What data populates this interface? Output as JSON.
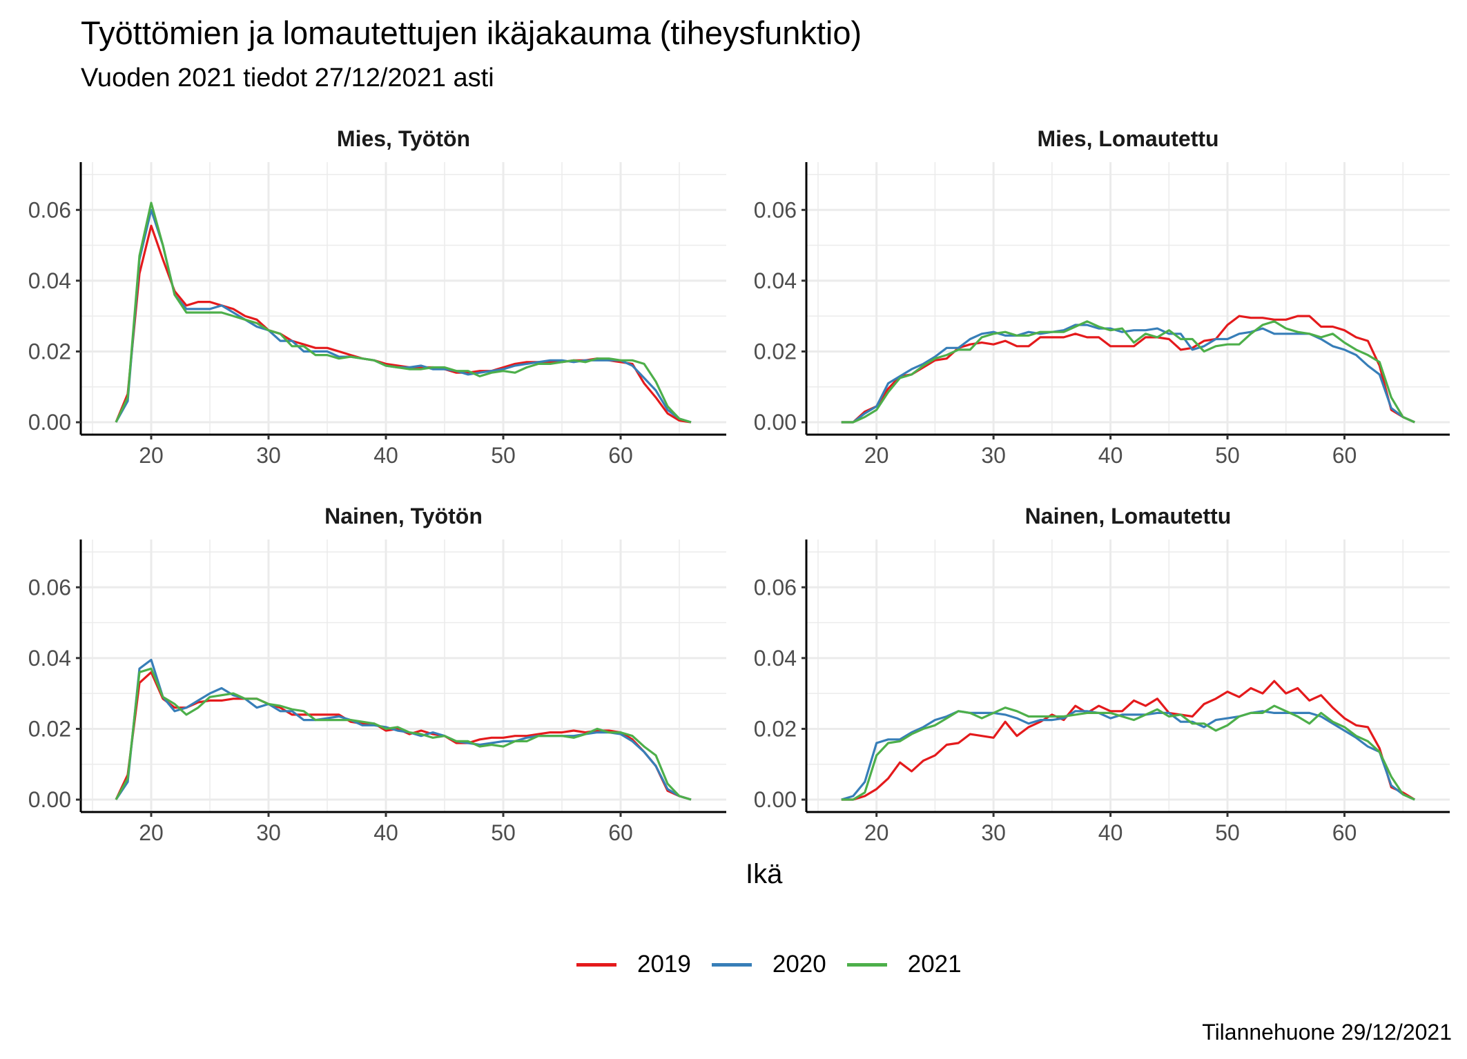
{
  "title": "Työttömien ja lomautettujen ikäjakauma (tiheysfunktio)",
  "subtitle": "Vuoden 2021 tiedot 27/12/2021 asti",
  "caption": "Tilannehuone 29/12/2021",
  "chart_data": {
    "type": "line",
    "title": "Työttömien ja lomautettujen ikäjakauma (tiheysfunktio)",
    "subtitle": "Vuoden 2021 tiedot 27/12/2021 asti",
    "xlabel": "Ikä",
    "ylabel": "",
    "xlim": [
      14,
      69
    ],
    "ylim": [
      -0.0035,
      0.0735
    ],
    "xticks": [
      20,
      30,
      40,
      50,
      60
    ],
    "yticks": [
      0.0,
      0.02,
      0.04,
      0.06
    ],
    "ytick_labels": [
      "0.00",
      "0.02",
      "0.04",
      "0.06"
    ],
    "grid": true,
    "legend": {
      "position": "bottom",
      "entries": [
        {
          "label": "2019",
          "color": "#E41A1C"
        },
        {
          "label": "2020",
          "color": "#377EB8"
        },
        {
          "label": "2021",
          "color": "#4DAF4A"
        }
      ]
    },
    "x": [
      17,
      18,
      19,
      20,
      21,
      22,
      23,
      24,
      25,
      26,
      27,
      28,
      29,
      30,
      31,
      32,
      33,
      34,
      35,
      36,
      37,
      38,
      39,
      40,
      41,
      42,
      43,
      44,
      45,
      46,
      47,
      48,
      49,
      50,
      51,
      52,
      53,
      54,
      55,
      56,
      57,
      58,
      59,
      60,
      61,
      62,
      63,
      64,
      65,
      66
    ],
    "panels": [
      {
        "strip": "Mies, Työtön",
        "series": [
          {
            "name": "2019",
            "values": [
              0,
              0.008,
              0.042,
              0.0555,
              0.046,
              0.037,
              0.033,
              0.034,
              0.034,
              0.033,
              0.032,
              0.03,
              0.029,
              0.026,
              0.025,
              0.023,
              0.022,
              0.021,
              0.021,
              0.02,
              0.019,
              0.018,
              0.0175,
              0.0165,
              0.016,
              0.0155,
              0.0155,
              0.0155,
              0.015,
              0.014,
              0.014,
              0.0145,
              0.0145,
              0.0155,
              0.0165,
              0.017,
              0.017,
              0.017,
              0.017,
              0.0175,
              0.0175,
              0.018,
              0.0175,
              0.017,
              0.0165,
              0.011,
              0.007,
              0.0025,
              0.0005,
              0
            ]
          },
          {
            "name": "2020",
            "values": [
              0,
              0.006,
              0.046,
              0.06,
              0.05,
              0.036,
              0.032,
              0.032,
              0.032,
              0.033,
              0.031,
              0.029,
              0.027,
              0.026,
              0.023,
              0.023,
              0.02,
              0.02,
              0.02,
              0.0185,
              0.0185,
              0.018,
              0.0175,
              0.016,
              0.0155,
              0.0155,
              0.016,
              0.015,
              0.015,
              0.0145,
              0.0135,
              0.014,
              0.0145,
              0.015,
              0.016,
              0.0165,
              0.017,
              0.0175,
              0.0175,
              0.017,
              0.0175,
              0.0175,
              0.0175,
              0.0175,
              0.016,
              0.0125,
              0.009,
              0.0035,
              0.001,
              0
            ]
          },
          {
            "name": "2021",
            "values": [
              0,
              0.007,
              0.047,
              0.062,
              0.05,
              0.036,
              0.031,
              0.031,
              0.031,
              0.031,
              0.03,
              0.029,
              0.028,
              0.026,
              0.025,
              0.0215,
              0.0215,
              0.019,
              0.019,
              0.018,
              0.0185,
              0.018,
              0.0175,
              0.016,
              0.0155,
              0.015,
              0.015,
              0.0155,
              0.0155,
              0.0145,
              0.0145,
              0.013,
              0.014,
              0.0145,
              0.014,
              0.0155,
              0.0165,
              0.0165,
              0.017,
              0.0175,
              0.017,
              0.018,
              0.018,
              0.0175,
              0.0175,
              0.0165,
              0.0115,
              0.0045,
              0.001,
              0
            ]
          }
        ]
      },
      {
        "strip": "Mies, Lomautettu",
        "series": [
          {
            "name": "2019",
            "values": [
              0,
              0,
              0.003,
              0.0045,
              0.0095,
              0.013,
              0.0135,
              0.0155,
              0.0175,
              0.018,
              0.021,
              0.022,
              0.0225,
              0.022,
              0.023,
              0.0215,
              0.0215,
              0.024,
              0.024,
              0.024,
              0.025,
              0.024,
              0.024,
              0.0215,
              0.0215,
              0.0215,
              0.024,
              0.024,
              0.0235,
              0.0205,
              0.021,
              0.023,
              0.0235,
              0.0275,
              0.03,
              0.0295,
              0.0295,
              0.029,
              0.029,
              0.03,
              0.03,
              0.027,
              0.027,
              0.026,
              0.024,
              0.023,
              0.016,
              0.0035,
              0.0015,
              0
            ]
          },
          {
            "name": "2020",
            "values": [
              0,
              0,
              0.0025,
              0.0045,
              0.011,
              0.013,
              0.015,
              0.0165,
              0.0185,
              0.021,
              0.021,
              0.0235,
              0.025,
              0.0255,
              0.0245,
              0.0245,
              0.0255,
              0.025,
              0.0255,
              0.026,
              0.0275,
              0.0275,
              0.0265,
              0.0265,
              0.0255,
              0.026,
              0.026,
              0.0265,
              0.025,
              0.025,
              0.0205,
              0.0215,
              0.0235,
              0.0235,
              0.025,
              0.0255,
              0.0265,
              0.025,
              0.025,
              0.025,
              0.025,
              0.0235,
              0.0215,
              0.0205,
              0.019,
              0.016,
              0.0135,
              0.004,
              0.0015,
              0
            ]
          },
          {
            "name": "2021",
            "values": [
              0,
              0,
              0.0015,
              0.0035,
              0.0085,
              0.0125,
              0.0135,
              0.016,
              0.018,
              0.019,
              0.0205,
              0.0205,
              0.024,
              0.025,
              0.0255,
              0.0245,
              0.0245,
              0.0255,
              0.0255,
              0.0255,
              0.027,
              0.0285,
              0.027,
              0.026,
              0.0265,
              0.0225,
              0.025,
              0.024,
              0.026,
              0.0235,
              0.0235,
              0.02,
              0.0215,
              0.022,
              0.022,
              0.025,
              0.0275,
              0.0285,
              0.0265,
              0.0255,
              0.025,
              0.024,
              0.025,
              0.0225,
              0.0205,
              0.019,
              0.017,
              0.007,
              0.0015,
              0
            ]
          }
        ]
      },
      {
        "strip": "Nainen, Työtön",
        "series": [
          {
            "name": "2019",
            "values": [
              0,
              0.007,
              0.033,
              0.036,
              0.0285,
              0.026,
              0.026,
              0.0275,
              0.028,
              0.028,
              0.0285,
              0.0285,
              0.0285,
              0.027,
              0.026,
              0.024,
              0.024,
              0.024,
              0.024,
              0.024,
              0.022,
              0.0215,
              0.0215,
              0.0195,
              0.02,
              0.0185,
              0.0195,
              0.0185,
              0.018,
              0.016,
              0.016,
              0.017,
              0.0175,
              0.0175,
              0.018,
              0.018,
              0.0185,
              0.019,
              0.019,
              0.0195,
              0.019,
              0.0195,
              0.0195,
              0.019,
              0.017,
              0.0135,
              0.0095,
              0.0025,
              0.001,
              0
            ]
          },
          {
            "name": "2020",
            "values": [
              0,
              0.005,
              0.037,
              0.0395,
              0.029,
              0.025,
              0.026,
              0.028,
              0.03,
              0.0315,
              0.0295,
              0.0285,
              0.026,
              0.027,
              0.025,
              0.025,
              0.0225,
              0.0225,
              0.023,
              0.0235,
              0.0225,
              0.021,
              0.021,
              0.0205,
              0.0195,
              0.019,
              0.018,
              0.019,
              0.018,
              0.0165,
              0.016,
              0.0155,
              0.016,
              0.0165,
              0.0165,
              0.0175,
              0.018,
              0.018,
              0.018,
              0.018,
              0.0185,
              0.019,
              0.019,
              0.0185,
              0.0165,
              0.0135,
              0.0095,
              0.003,
              0.001,
              0
            ]
          },
          {
            "name": "2021",
            "values": [
              0,
              0.006,
              0.036,
              0.037,
              0.029,
              0.027,
              0.024,
              0.026,
              0.029,
              0.0295,
              0.03,
              0.0285,
              0.0285,
              0.027,
              0.0265,
              0.0255,
              0.025,
              0.0225,
              0.0225,
              0.0225,
              0.0225,
              0.022,
              0.0215,
              0.02,
              0.0205,
              0.019,
              0.0185,
              0.0175,
              0.018,
              0.0165,
              0.0165,
              0.015,
              0.0155,
              0.015,
              0.0165,
              0.0165,
              0.018,
              0.018,
              0.018,
              0.0175,
              0.0185,
              0.02,
              0.019,
              0.019,
              0.018,
              0.015,
              0.0125,
              0.0045,
              0.001,
              0
            ]
          }
        ]
      },
      {
        "strip": "Nainen, Lomautettu",
        "series": [
          {
            "name": "2019",
            "values": [
              0,
              0,
              0.001,
              0.003,
              0.006,
              0.0105,
              0.008,
              0.011,
              0.0125,
              0.0155,
              0.016,
              0.0185,
              0.018,
              0.0175,
              0.022,
              0.018,
              0.0205,
              0.022,
              0.024,
              0.0225,
              0.0265,
              0.0245,
              0.0265,
              0.025,
              0.025,
              0.028,
              0.0265,
              0.0285,
              0.0245,
              0.024,
              0.0235,
              0.027,
              0.0285,
              0.0305,
              0.029,
              0.0315,
              0.03,
              0.0335,
              0.03,
              0.0315,
              0.028,
              0.0295,
              0.026,
              0.023,
              0.021,
              0.0205,
              0.0145,
              0.0035,
              0.002,
              0
            ]
          },
          {
            "name": "2020",
            "values": [
              0,
              0.001,
              0.005,
              0.016,
              0.017,
              0.017,
              0.019,
              0.0205,
              0.0225,
              0.0235,
              0.025,
              0.0245,
              0.0245,
              0.0245,
              0.024,
              0.023,
              0.0215,
              0.0225,
              0.0225,
              0.023,
              0.025,
              0.025,
              0.0245,
              0.023,
              0.024,
              0.024,
              0.024,
              0.0245,
              0.0245,
              0.022,
              0.022,
              0.0205,
              0.0225,
              0.023,
              0.0235,
              0.0245,
              0.025,
              0.0245,
              0.0245,
              0.0245,
              0.0245,
              0.0235,
              0.0215,
              0.0195,
              0.0175,
              0.015,
              0.0135,
              0.004,
              0.0015,
              0
            ]
          },
          {
            "name": "2021",
            "values": [
              0,
              0,
              0.002,
              0.0125,
              0.016,
              0.0165,
              0.0185,
              0.02,
              0.021,
              0.023,
              0.025,
              0.0245,
              0.023,
              0.0245,
              0.026,
              0.025,
              0.0235,
              0.0235,
              0.0235,
              0.0235,
              0.024,
              0.0245,
              0.0245,
              0.0245,
              0.0235,
              0.0225,
              0.024,
              0.0255,
              0.0235,
              0.024,
              0.0215,
              0.0215,
              0.0195,
              0.021,
              0.0235,
              0.0245,
              0.0245,
              0.0265,
              0.025,
              0.0235,
              0.0215,
              0.0245,
              0.022,
              0.0205,
              0.018,
              0.0165,
              0.0135,
              0.0065,
              0.0015,
              0
            ]
          }
        ]
      }
    ]
  }
}
